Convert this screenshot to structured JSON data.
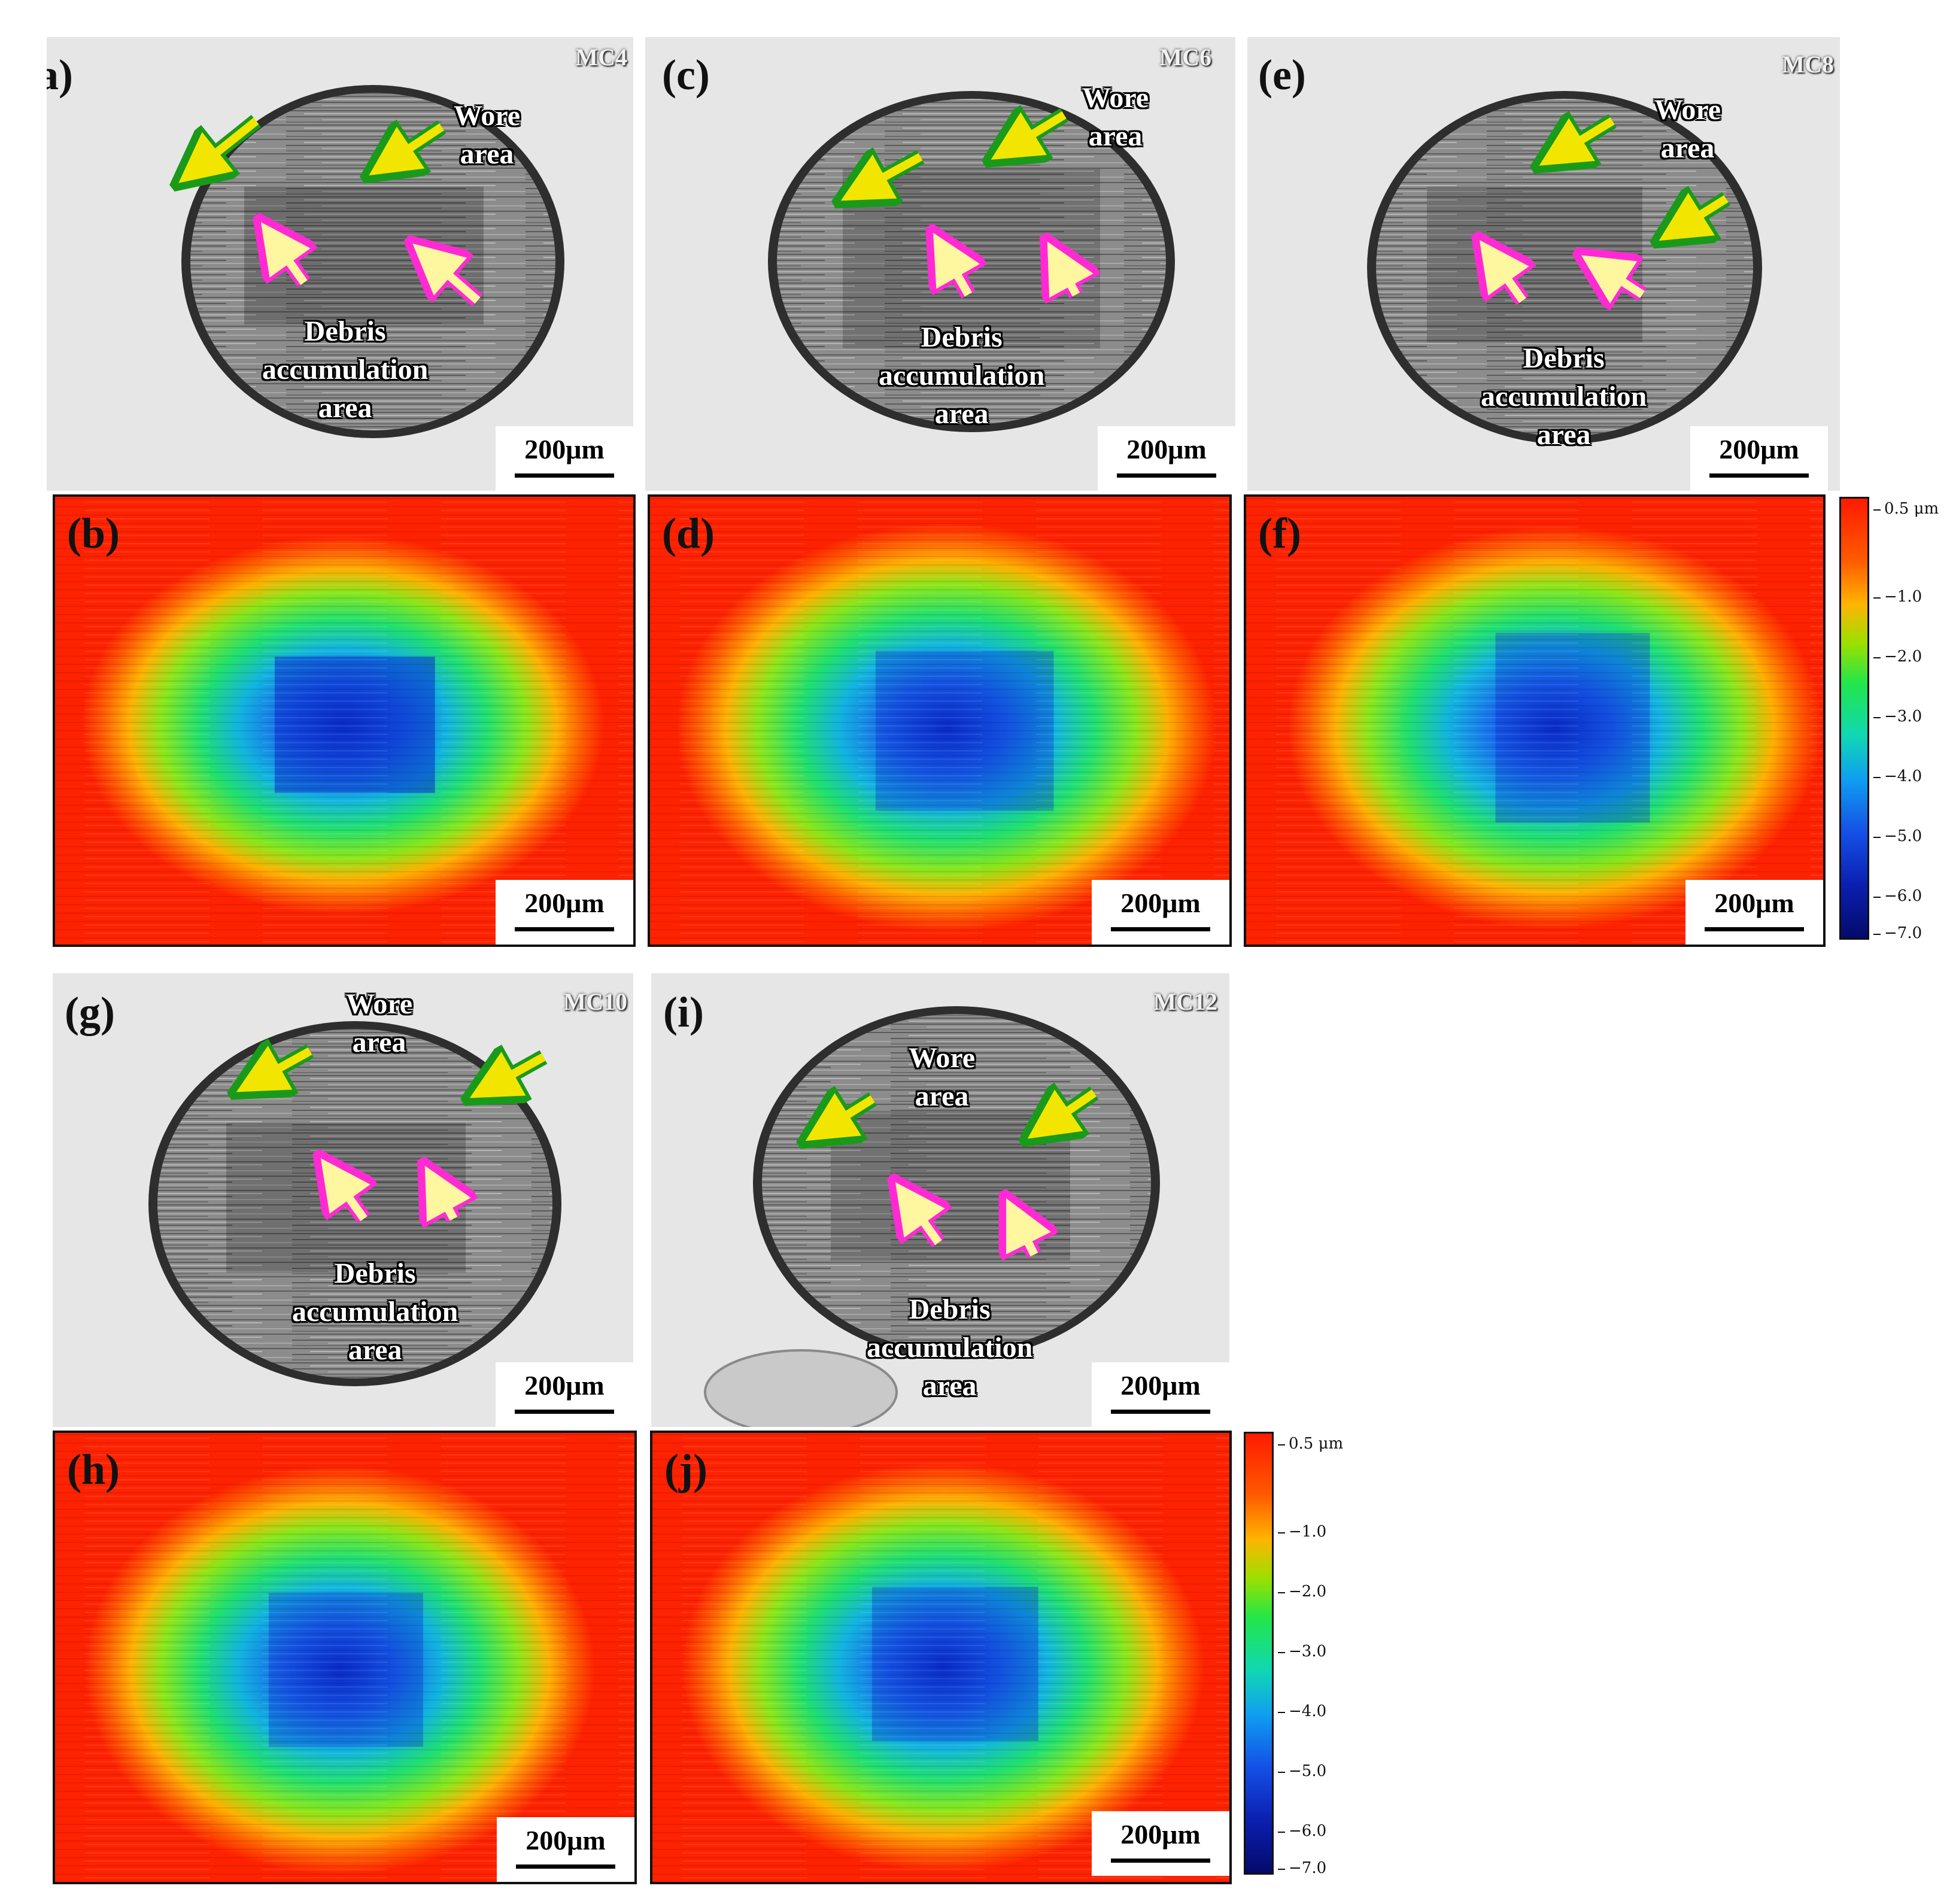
{
  "figure": {
    "scale_bar": "200μm",
    "wear_label": [
      "Wore",
      "area"
    ],
    "debris_label": [
      "Debris",
      "accumulation",
      "area"
    ],
    "colorbar": {
      "ticks": [
        "0.5 μm",
        "−1.0",
        "−2.0",
        "−3.0",
        "−4.0",
        "−5.0",
        "−6.0",
        "−7.0"
      ],
      "colors": [
        "#ff1a00",
        "#ffb400",
        "#22e64a",
        "#0f9ef0",
        "#040a6a"
      ]
    },
    "panels": [
      {
        "id": "a",
        "label": "(a)",
        "type": "micrograph",
        "sample": "MC4"
      },
      {
        "id": "b",
        "label": "(b)",
        "type": "depth-map"
      },
      {
        "id": "c",
        "label": "(c)",
        "type": "micrograph",
        "sample": "MC6"
      },
      {
        "id": "d",
        "label": "(d)",
        "type": "depth-map"
      },
      {
        "id": "e",
        "label": "(e)",
        "type": "micrograph",
        "sample": "MC8"
      },
      {
        "id": "f",
        "label": "(f)",
        "type": "depth-map"
      },
      {
        "id": "g",
        "label": "(g)",
        "type": "micrograph",
        "sample": "MC10"
      },
      {
        "id": "h",
        "label": "(h)",
        "type": "depth-map"
      },
      {
        "id": "i",
        "label": "(i)",
        "type": "micrograph",
        "sample": "MC12"
      },
      {
        "id": "j",
        "label": "(j)",
        "type": "depth-map"
      }
    ]
  }
}
